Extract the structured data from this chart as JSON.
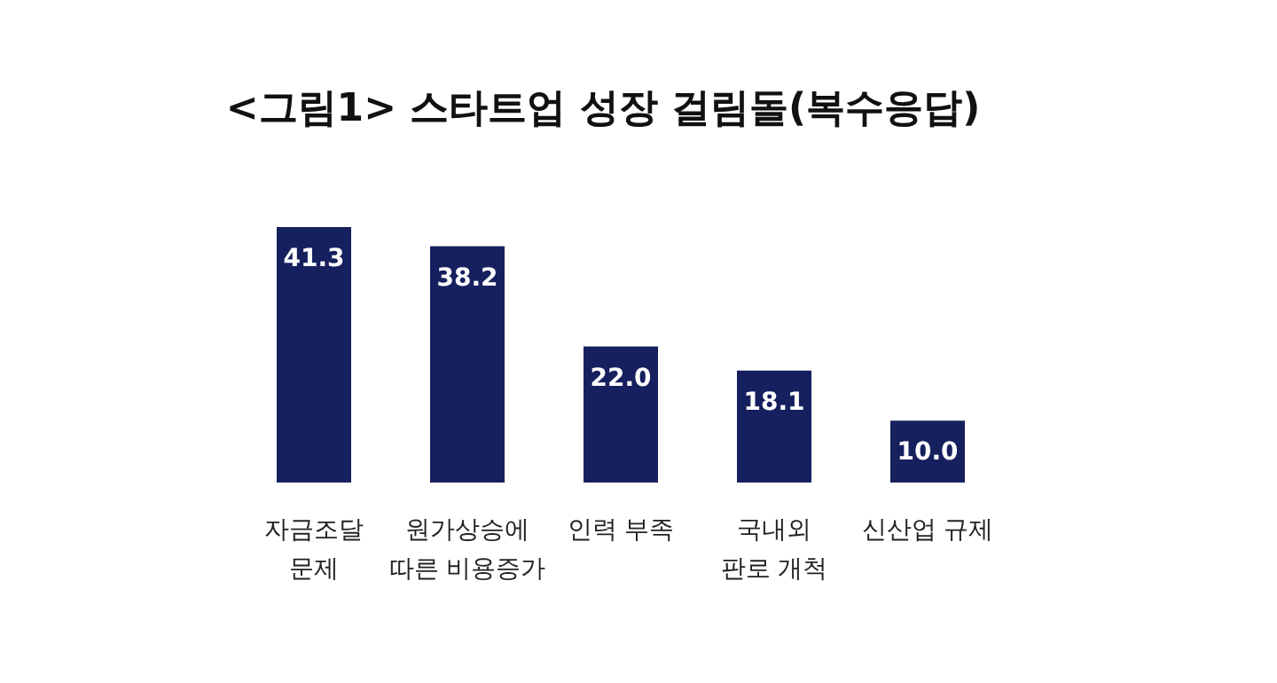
{
  "chart_data": {
    "type": "bar",
    "title": "<그림1> 스타트업 성장 걸림돌(복수응답)",
    "categories": [
      "자금조달\n문제",
      "원가상승에\n따른 비용증가",
      "인력 부족",
      "국내외\n판로 개척",
      "신산업 규제"
    ],
    "values": [
      41.3,
      38.2,
      22.0,
      18.1,
      10.0
    ],
    "value_labels": [
      "41.3",
      "38.2",
      "22.0",
      "18.1",
      "10.0"
    ],
    "color": "#16205e"
  }
}
